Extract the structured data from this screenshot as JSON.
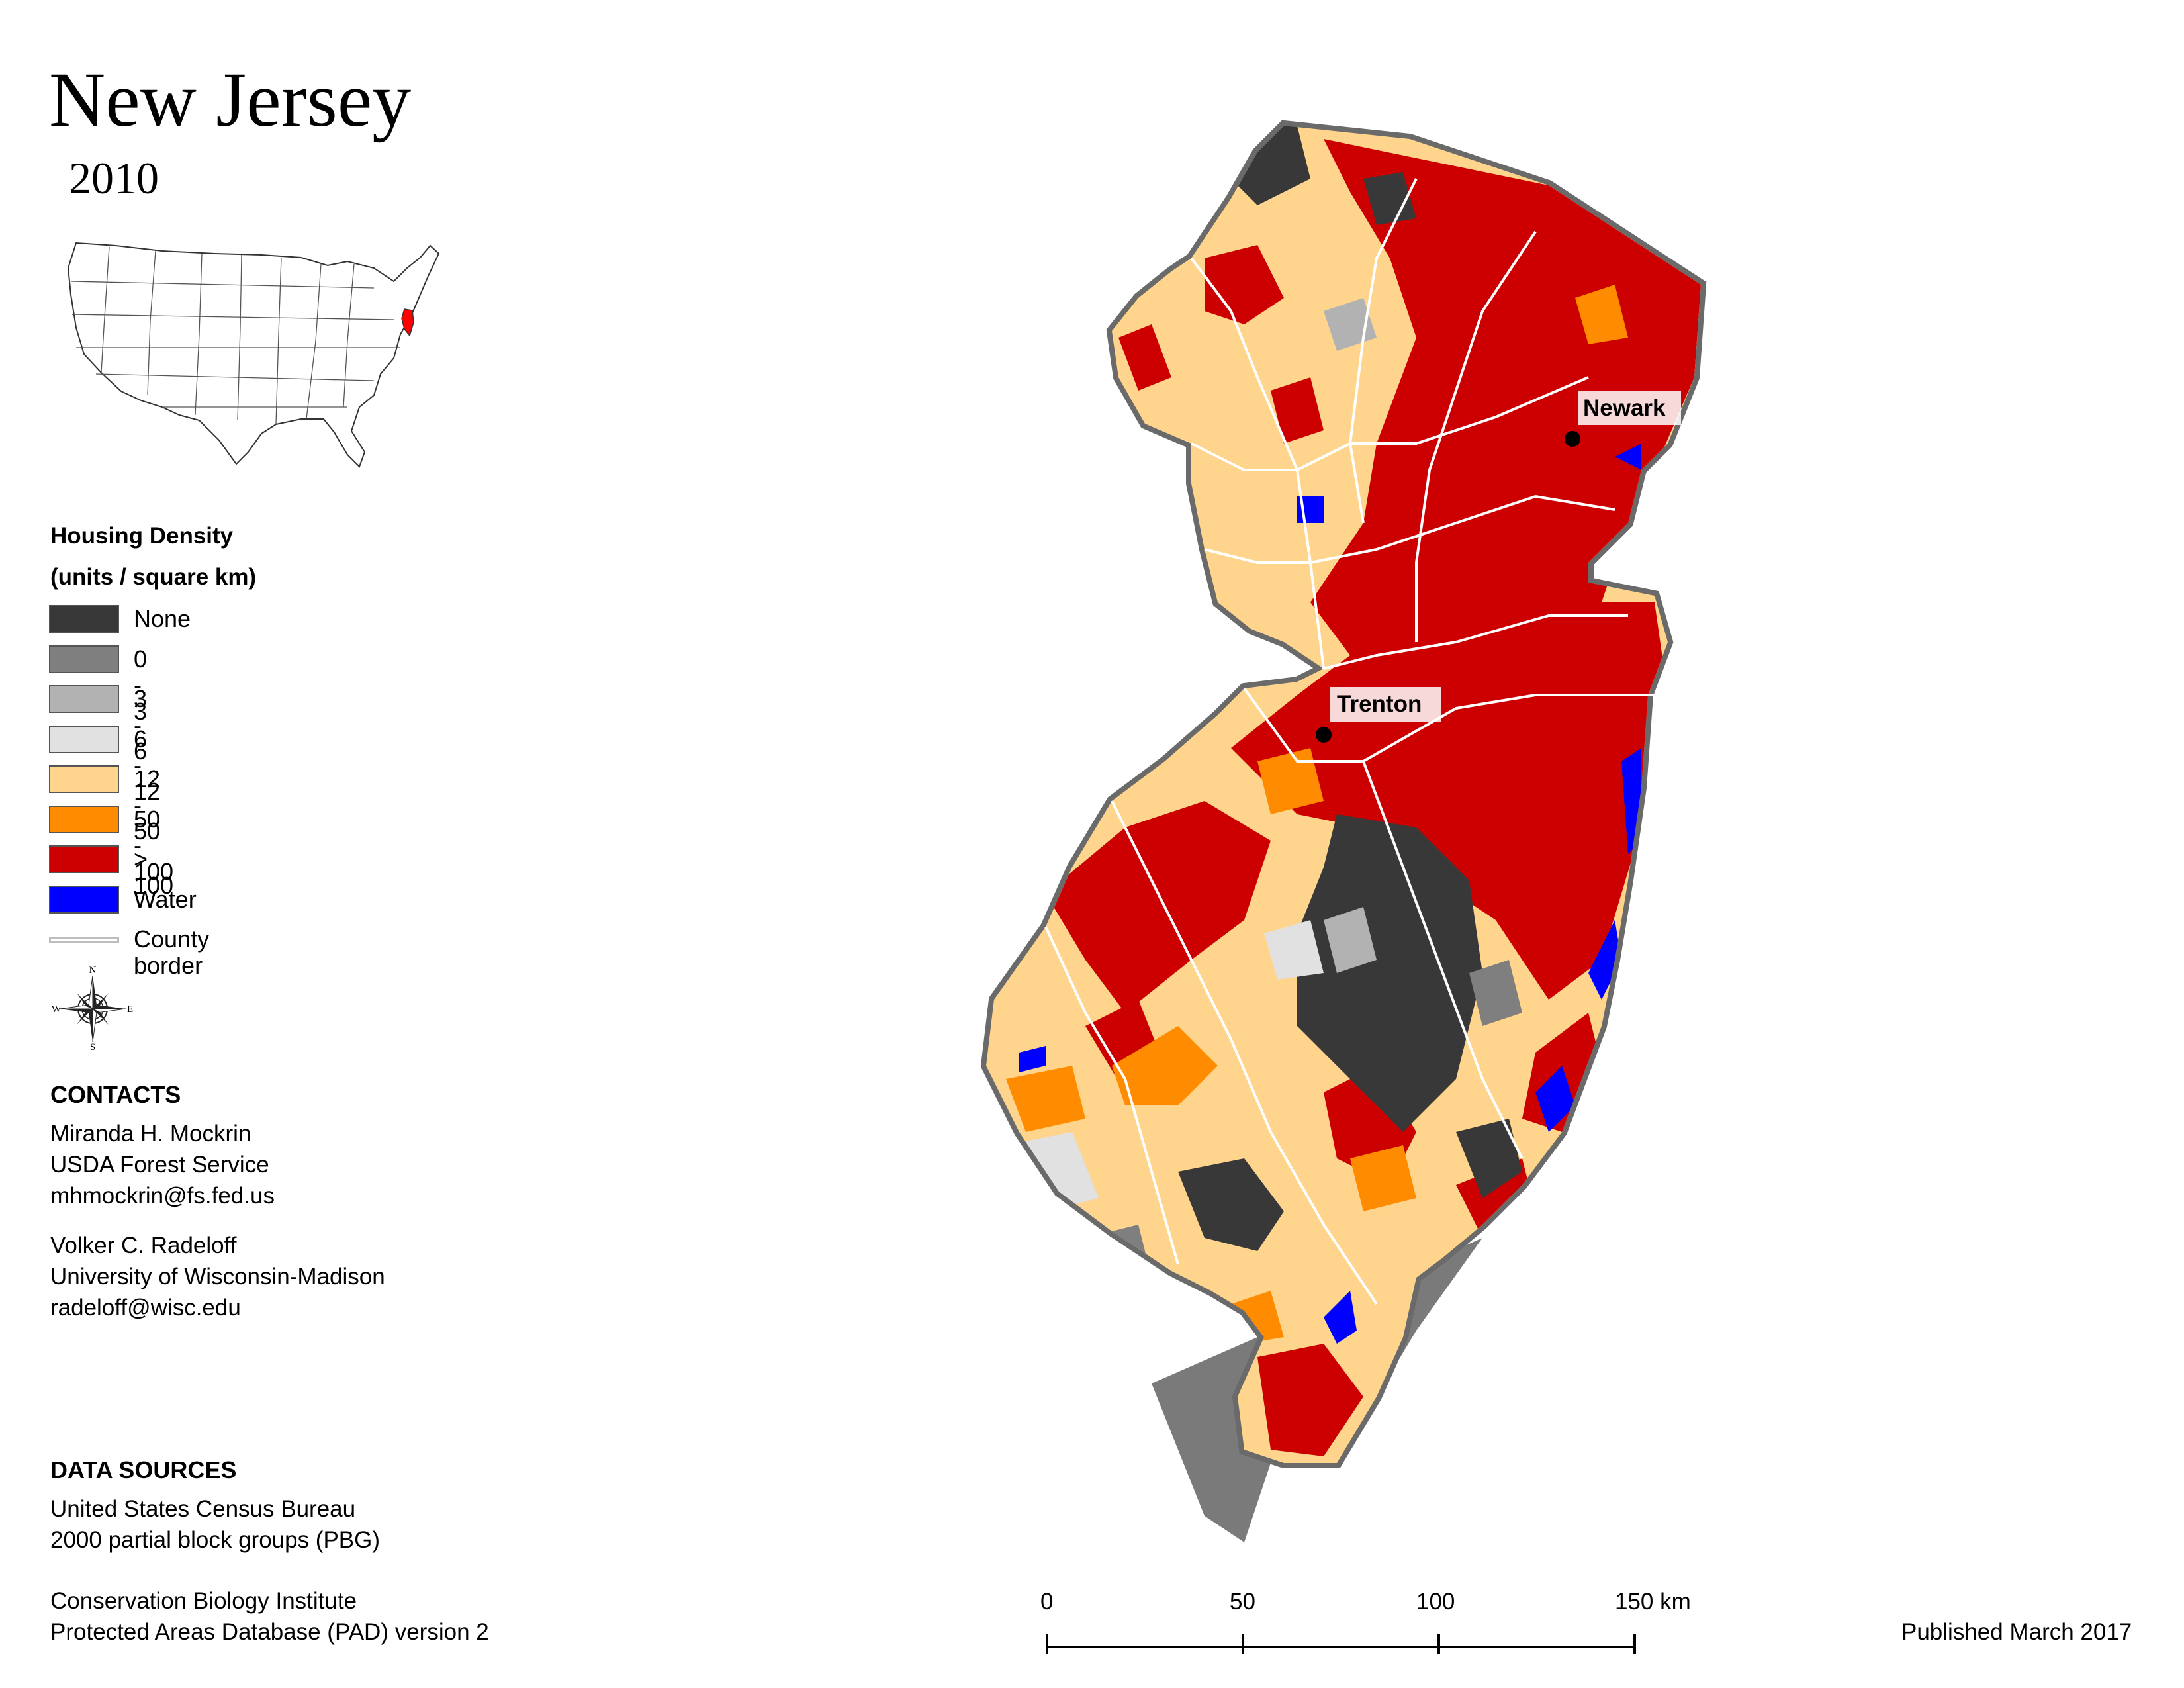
{
  "title": "New Jersey",
  "year": "2010",
  "legend": {
    "title_line1": "Housing Density",
    "title_line2": "(units / square km)",
    "items": [
      {
        "label": "None",
        "color": "#383838"
      },
      {
        "label": "0 - 3",
        "color": "#7f7f7f"
      },
      {
        "label": "3 - 6",
        "color": "#b2b2b2"
      },
      {
        "label": "6 - 12",
        "color": "#e1e1e1"
      },
      {
        "label": "12 - 50",
        "color": "#ffd48c"
      },
      {
        "label": "50 - 100",
        "color": "#ff8c00"
      },
      {
        "label": "> 100",
        "color": "#cc0000"
      },
      {
        "label": "Water",
        "color": "#0000ff"
      }
    ],
    "county_border_label": "County border"
  },
  "compass": {
    "n": "N",
    "s": "S",
    "e": "E",
    "w": "W"
  },
  "contacts": {
    "heading": "CONTACTS",
    "people": [
      {
        "name": "Miranda H. Mockrin",
        "org": "USDA Forest Service",
        "email": "mhmockrin@fs.fed.us"
      },
      {
        "name": "Volker C. Radeloff",
        "org": "University of Wisconsin-Madison",
        "email": "radeloff@wisc.edu"
      }
    ]
  },
  "data_sources": {
    "heading": "DATA SOURCES",
    "lines": [
      "United States Census Bureau",
      "2000 partial block groups (PBG)",
      "Conservation Biology Institute",
      "Protected Areas Database (PAD) version 2"
    ]
  },
  "cities": [
    {
      "name": "Newark"
    },
    {
      "name": "Trenton"
    }
  ],
  "scale_bar": {
    "labels": [
      "0",
      "50",
      "100",
      "150 km"
    ]
  },
  "published": "Published March 2017"
}
